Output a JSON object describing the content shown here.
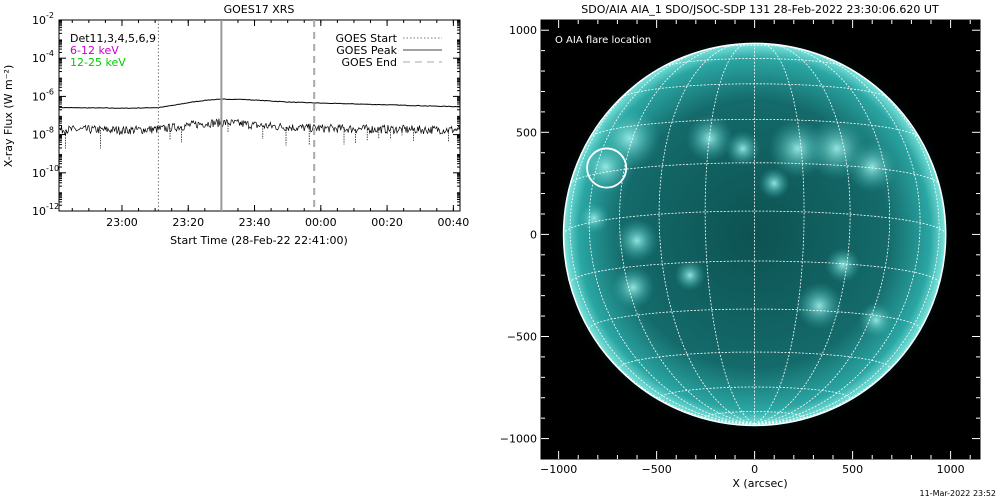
{
  "chart_data": [
    {
      "type": "line",
      "title": "GOES17 XRS",
      "xlabel": "Start Time (28-Feb-22 22:41:00)",
      "ylabel": "X-ray Flux (W m⁻²)",
      "x_range_minutes": [
        0,
        121
      ],
      "x_ticks": [
        {
          "label": "23:00",
          "minute": 19
        },
        {
          "label": "23:20",
          "minute": 39
        },
        {
          "label": "23:40",
          "minute": 59
        },
        {
          "label": "00:00",
          "minute": 79
        },
        {
          "label": "00:20",
          "minute": 99
        },
        {
          "label": "00:40",
          "minute": 119
        }
      ],
      "y_log_range": [
        -12,
        -2
      ],
      "y_ticks": [
        {
          "base": "10",
          "exp": "-2"
        },
        {
          "base": "10",
          "exp": "-4"
        },
        {
          "base": "10",
          "exp": "-6"
        },
        {
          "base": "10",
          "exp": "-8"
        },
        {
          "base": "10",
          "exp": "-10"
        },
        {
          "base": "10",
          "exp": "-12"
        }
      ],
      "y_tick_exps": [
        -2,
        -4,
        -6,
        -8,
        -10,
        -12
      ],
      "annotations": [
        "Det11,3,4,5,6,9",
        "6-12 keV",
        "12-25 keV"
      ],
      "annotation_colors": [
        "#000000",
        "#cc00cc",
        "#00cc00"
      ],
      "legend": {
        "position": "top-right",
        "entries": [
          {
            "label": "GOES Start",
            "style": "dotted",
            "minute": 30
          },
          {
            "label": "GOES Peak",
            "style": "solid",
            "minute": 49
          },
          {
            "label": "GOES End",
            "style": "dashed",
            "minute": 77
          }
        ]
      },
      "series": [
        {
          "band": "low",
          "x": [
            0,
            10,
            20,
            30,
            35,
            40,
            45,
            50,
            55,
            60,
            65,
            70,
            80,
            90,
            100,
            110,
            121
          ],
          "y": [
            2.6e-07,
            2.5e-07,
            2.4e-07,
            2.6e-07,
            3.5e-07,
            5e-07,
            6.5e-07,
            7.2e-07,
            7e-07,
            6.3e-07,
            5.6e-07,
            5e-07,
            4.4e-07,
            4e-07,
            3.6e-07,
            3.2e-07,
            2.9e-07
          ]
        },
        {
          "band": "high",
          "x": [
            0,
            10,
            20,
            30,
            35,
            40,
            45,
            50,
            55,
            60,
            70,
            80,
            90,
            100,
            110,
            121
          ],
          "y": [
            1.8e-08,
            1.8e-08,
            1.7e-08,
            1.9e-08,
            2.4e-08,
            3.2e-08,
            4e-08,
            4.2e-08,
            3.7e-08,
            3e-08,
            2.4e-08,
            2.1e-08,
            2e-08,
            1.9e-08,
            1.8e-08,
            1.8e-08
          ]
        }
      ]
    },
    {
      "type": "scatter",
      "title": "SDO/AIA AIA_1 SDO/JSOC-SDP 131 28-Feb-2022 23:30:06.620 UT",
      "xlabel": "X (arcsec)",
      "ylabel": "",
      "xlim": [
        -1090,
        1150
      ],
      "ylim": [
        -1100,
        1050
      ],
      "x_ticks": [
        -1000,
        -500,
        0,
        500,
        1000
      ],
      "y_ticks": [
        1000,
        500,
        0,
        -500,
        -1000
      ],
      "x_tick_labels": [
        "−1000",
        "−500",
        "0",
        "500",
        "1000"
      ],
      "y_tick_labels": [
        "1000",
        "500",
        "0",
        "−500",
        "−1000"
      ],
      "solar_radius_arcsec": 975,
      "legend": {
        "position": "top-left",
        "entries": [
          "O AIA flare location"
        ]
      },
      "flare_location": {
        "x": -755,
        "y": 325,
        "r": 100
      }
    }
  ],
  "footer": {
    "timestamp": "11-Mar-2022 23:52"
  }
}
